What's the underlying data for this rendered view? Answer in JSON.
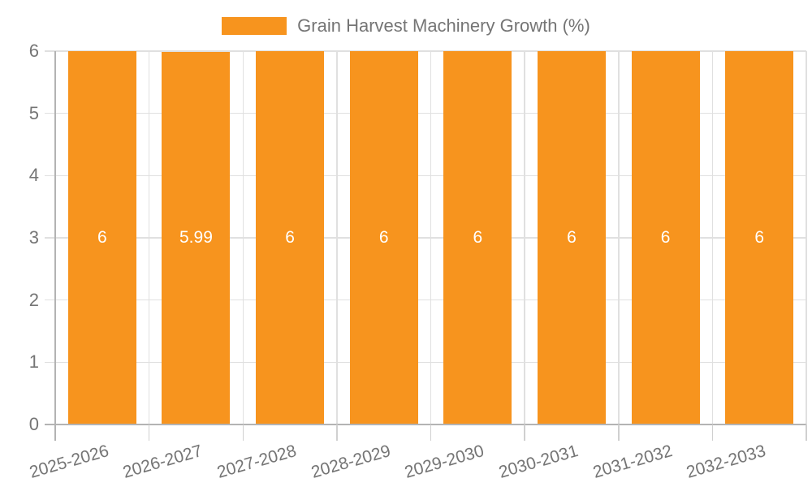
{
  "chart_data": {
    "type": "bar",
    "title": "",
    "legend_label": "Grain Harvest Machinery Growth (%)",
    "legend_position": "top-center",
    "categories": [
      "2025-2026",
      "2026-2027",
      "2027-2028",
      "2028-2029",
      "2029-2030",
      "2030-2031",
      "2031-2032",
      "2032-2033"
    ],
    "values": [
      6,
      5.99,
      6,
      6,
      6,
      6,
      6,
      6
    ],
    "bar_labels": [
      "6",
      "5.99",
      "6",
      "6",
      "6",
      "6",
      "6",
      "6"
    ],
    "xlabel": "",
    "ylabel": "",
    "ylim": [
      0,
      6
    ],
    "yticks": [
      0,
      1,
      2,
      3,
      4,
      5,
      6
    ],
    "grid": true,
    "colors": {
      "bar": "#F7941E",
      "bar_value_text": "#FFFFFF",
      "axis_text": "#757575",
      "gridline": "#E0E0E0",
      "tick_line": "#D0D0D0",
      "axis_line": "#B3B3B3",
      "background": "#FFFFFF"
    }
  }
}
